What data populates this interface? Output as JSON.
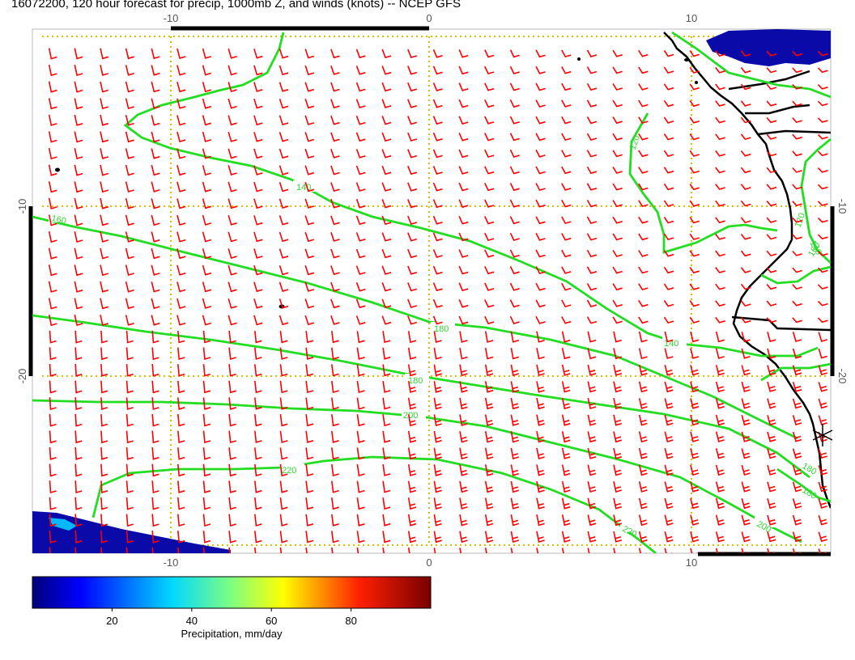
{
  "title": "16072200, 120 hour forecast for precip, 1000mb Z, and winds (knots) -- NCEP GFS",
  "map": {
    "lon_ticks": [
      -10,
      0,
      10
    ],
    "lat_ticks": [
      -10,
      -20
    ],
    "gridline_color": "#d8c000",
    "coast_color": "#000000",
    "contour_color": "#22dd22",
    "barb_color": "#ff0000",
    "contours": [
      {
        "value": 140,
        "label": "140"
      },
      {
        "value": 160,
        "label": "160"
      },
      {
        "value": 180,
        "label": "180"
      },
      {
        "value": 200,
        "label": "200"
      },
      {
        "value": 220,
        "label": "220"
      }
    ],
    "right_edge_labels": [
      "120",
      "140",
      "160",
      "180",
      "180",
      "200"
    ]
  },
  "colorbar": {
    "label": "Precipitation, mm/day",
    "ticks": [
      20,
      40,
      60,
      80
    ],
    "range": [
      0,
      100
    ],
    "colormap": [
      "#00008f",
      "#0000ff",
      "#00ffff",
      "#ffff00",
      "#ff0000",
      "#800000"
    ]
  }
}
